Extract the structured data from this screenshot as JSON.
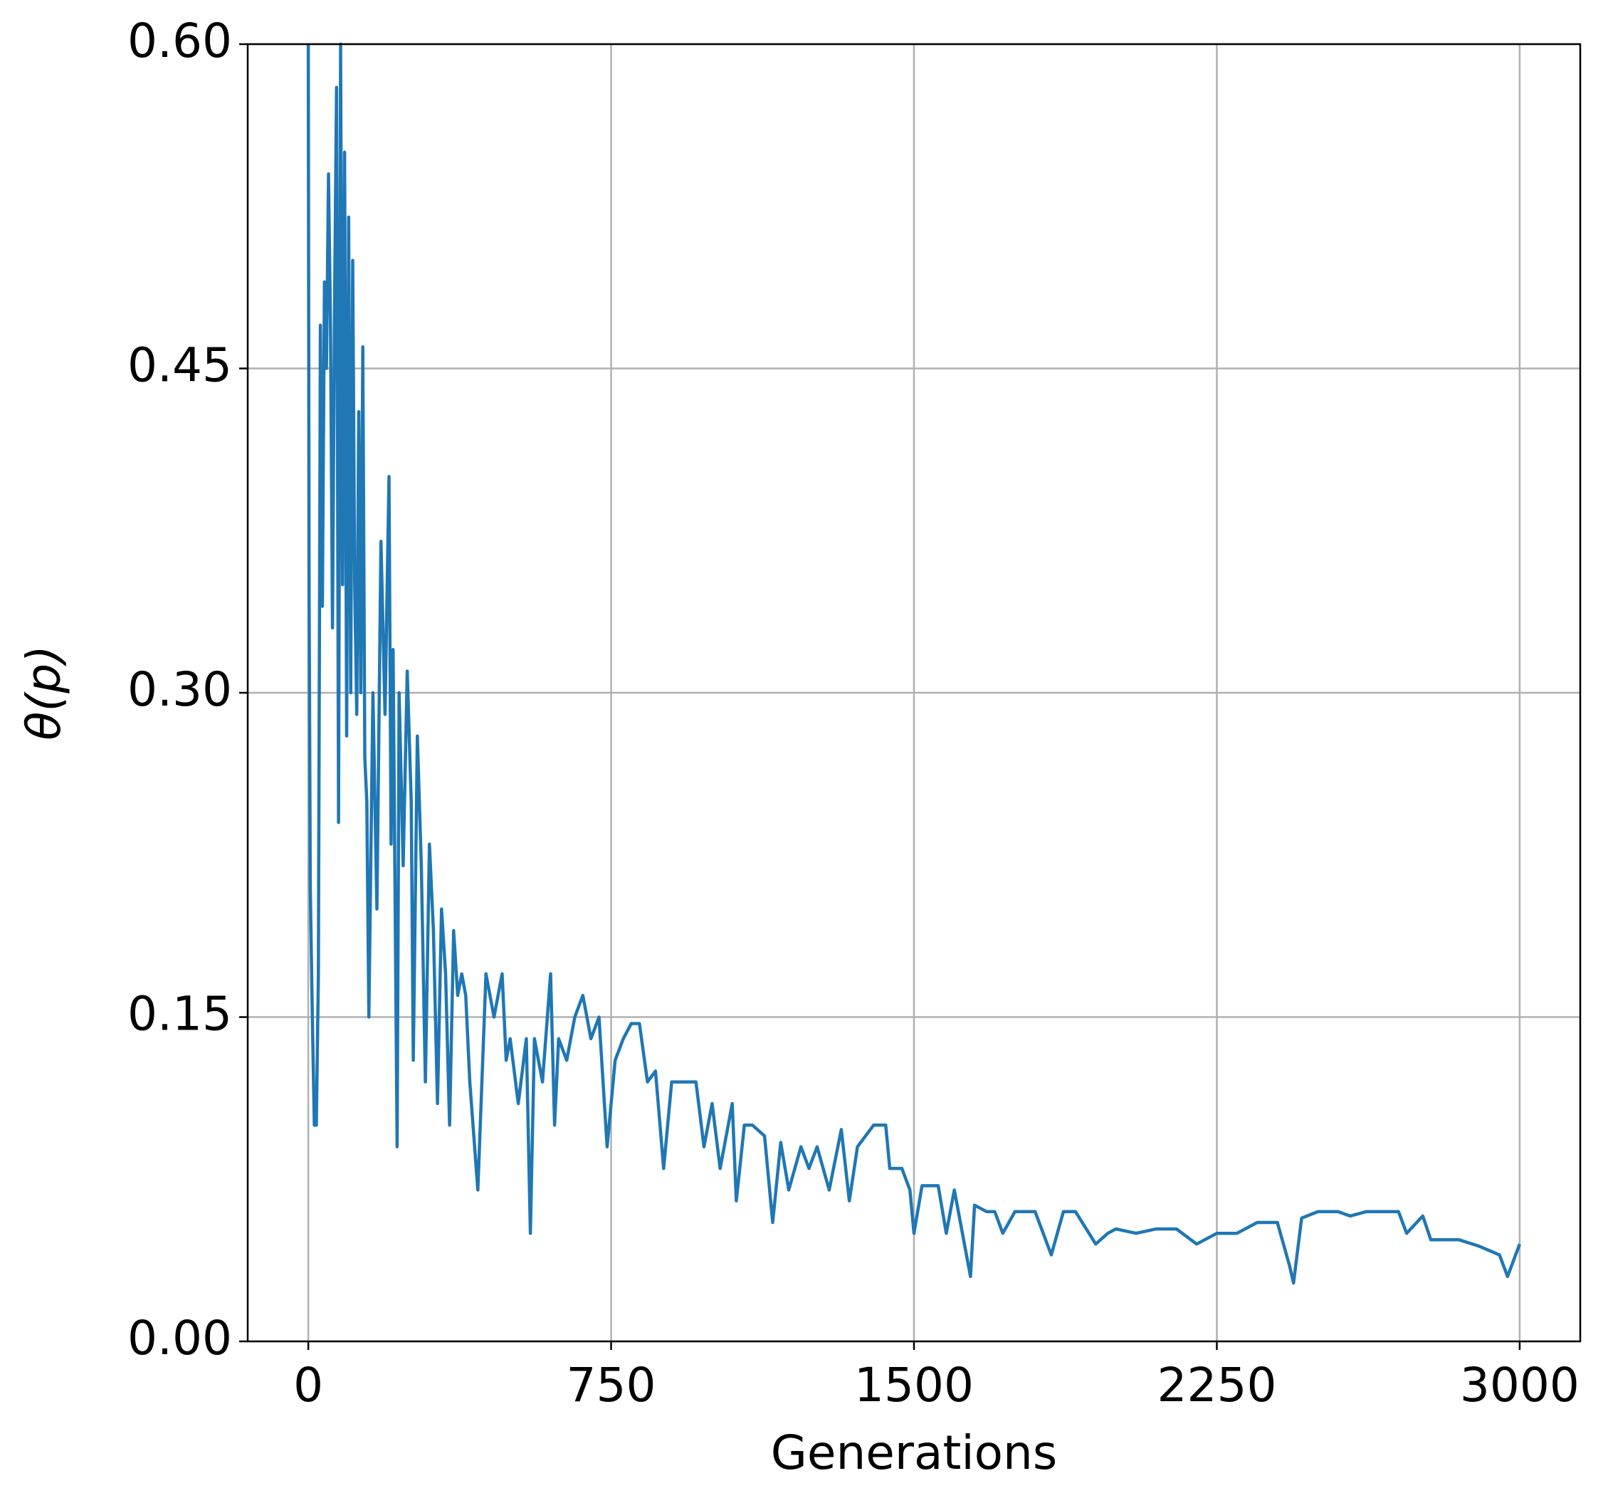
{
  "chart_data": {
    "type": "line",
    "x_label": "Generations",
    "y_label": "θ(p)",
    "xlim": [
      -150,
      3150
    ],
    "ylim": [
      0,
      0.6
    ],
    "xticks": [
      0,
      750,
      1500,
      2250,
      3000
    ],
    "yticks": [
      {
        "value": 0,
        "label": "0.00"
      },
      {
        "value": 0.15,
        "label": "0.15"
      },
      {
        "value": 0.3,
        "label": "0.30"
      },
      {
        "value": 0.45,
        "label": "0.45"
      },
      {
        "value": 0.6,
        "label": "0.60"
      }
    ],
    "grid": true,
    "series": [
      {
        "color": "#1f77b4",
        "x": [
          0,
          2,
          5,
          10,
          15,
          20,
          25,
          30,
          35,
          40,
          45,
          50,
          55,
          60,
          65,
          70,
          75,
          80,
          85,
          90,
          95,
          100,
          105,
          110,
          115,
          120,
          125,
          130,
          135,
          140,
          145,
          150,
          160,
          170,
          180,
          190,
          200,
          205,
          210,
          220,
          225,
          235,
          245,
          255,
          260,
          270,
          280,
          290,
          300,
          310,
          320,
          330,
          340,
          350,
          360,
          370,
          380,
          390,
          400,
          420,
          440,
          460,
          480,
          490,
          500,
          520,
          540,
          550,
          560,
          580,
          600,
          610,
          620,
          640,
          660,
          680,
          700,
          720,
          740,
          760,
          780,
          800,
          820,
          840,
          860,
          880,
          900,
          930,
          960,
          980,
          1000,
          1020,
          1050,
          1060,
          1080,
          1100,
          1130,
          1150,
          1170,
          1190,
          1220,
          1240,
          1260,
          1290,
          1320,
          1340,
          1360,
          1400,
          1430,
          1440,
          1470,
          1490,
          1500,
          1520,
          1560,
          1580,
          1600,
          1640,
          1650,
          1680,
          1700,
          1720,
          1750,
          1800,
          1840,
          1870,
          1900,
          1950,
          1980,
          2000,
          2050,
          2100,
          2150,
          2200,
          2250,
          2300,
          2350,
          2400,
          2430,
          2440,
          2460,
          2500,
          2550,
          2580,
          2620,
          2700,
          2720,
          2760,
          2780,
          2850,
          2900,
          2950,
          2970,
          3000
        ],
        "values": [
          0.6,
          0.35,
          0.21,
          0.15,
          0.1,
          0.1,
          0.17,
          0.47,
          0.34,
          0.49,
          0.45,
          0.54,
          0.47,
          0.33,
          0.48,
          0.58,
          0.24,
          0.6,
          0.35,
          0.55,
          0.28,
          0.52,
          0.3,
          0.5,
          0.35,
          0.29,
          0.43,
          0.3,
          0.46,
          0.27,
          0.25,
          0.15,
          0.3,
          0.2,
          0.37,
          0.29,
          0.4,
          0.23,
          0.32,
          0.09,
          0.3,
          0.22,
          0.31,
          0.25,
          0.13,
          0.28,
          0.22,
          0.12,
          0.23,
          0.19,
          0.11,
          0.2,
          0.17,
          0.1,
          0.19,
          0.16,
          0.17,
          0.16,
          0.12,
          0.07,
          0.17,
          0.15,
          0.17,
          0.13,
          0.14,
          0.11,
          0.14,
          0.05,
          0.14,
          0.12,
          0.17,
          0.1,
          0.14,
          0.13,
          0.15,
          0.16,
          0.14,
          0.15,
          0.09,
          0.13,
          0.14,
          0.147,
          0.147,
          0.12,
          0.125,
          0.08,
          0.12,
          0.12,
          0.12,
          0.09,
          0.11,
          0.08,
          0.11,
          0.065,
          0.1,
          0.1,
          0.095,
          0.055,
          0.092,
          0.07,
          0.09,
          0.08,
          0.09,
          0.07,
          0.098,
          0.065,
          0.09,
          0.1,
          0.1,
          0.08,
          0.08,
          0.07,
          0.05,
          0.072,
          0.072,
          0.05,
          0.07,
          0.03,
          0.063,
          0.06,
          0.06,
          0.05,
          0.06,
          0.06,
          0.04,
          0.06,
          0.06,
          0.045,
          0.05,
          0.052,
          0.05,
          0.052,
          0.052,
          0.045,
          0.05,
          0.05,
          0.055,
          0.055,
          0.035,
          0.027,
          0.057,
          0.06,
          0.06,
          0.058,
          0.06,
          0.06,
          0.05,
          0.058,
          0.047,
          0.047,
          0.044,
          0.04,
          0.03,
          0.045
        ]
      }
    ]
  }
}
